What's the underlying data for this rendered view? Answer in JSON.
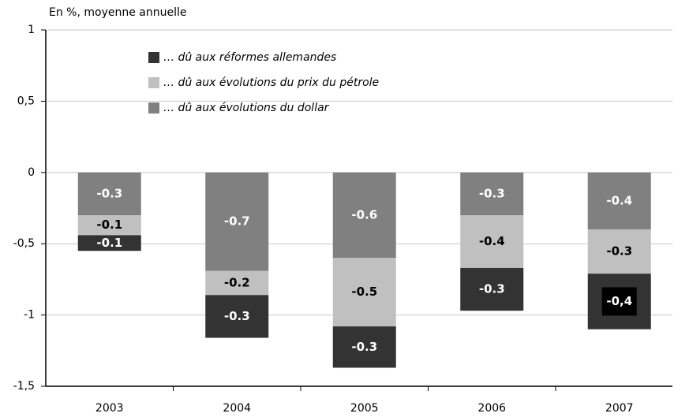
{
  "chart_data": {
    "type": "bar",
    "stacked": true,
    "y_axis_label": "En %, moyenne annuelle",
    "categories": [
      "2003",
      "2004",
      "2005",
      "2006",
      "2007"
    ],
    "series": [
      {
        "name": "… dû aux évolutions du dollar",
        "color": "#808080",
        "values": [
          -0.3,
          -0.69,
          -0.6,
          -0.3,
          -0.4
        ],
        "value_labels": [
          "-0.3",
          "-0.7",
          "-0.6",
          "-0.3",
          "-0.4"
        ]
      },
      {
        "name": "… dû aux évolutions du prix du pétrole",
        "color": "#c0c0c0",
        "values": [
          -0.14,
          -0.17,
          -0.48,
          -0.37,
          -0.31
        ],
        "value_labels": [
          "-0.1",
          "-0.2",
          "-0.5",
          "-0.4",
          "-0.3"
        ]
      },
      {
        "name": "… dû aux réformes allemandes",
        "color": "#333333",
        "values": [
          -0.11,
          -0.3,
          -0.29,
          -0.3,
          -0.39
        ],
        "value_labels": [
          "-0.1",
          "-0.3",
          "-0.3",
          "-0.3",
          "-0,4"
        ]
      }
    ],
    "ylim": [
      -1.5,
      1
    ],
    "yticks": [
      1,
      {
        "value": 0.5,
        "label": "0,5"
      },
      0,
      {
        "value": -0.5,
        "label": "-0,5"
      },
      -1,
      {
        "value": -1.5,
        "label": "-1,5"
      }
    ],
    "grid": true
  }
}
